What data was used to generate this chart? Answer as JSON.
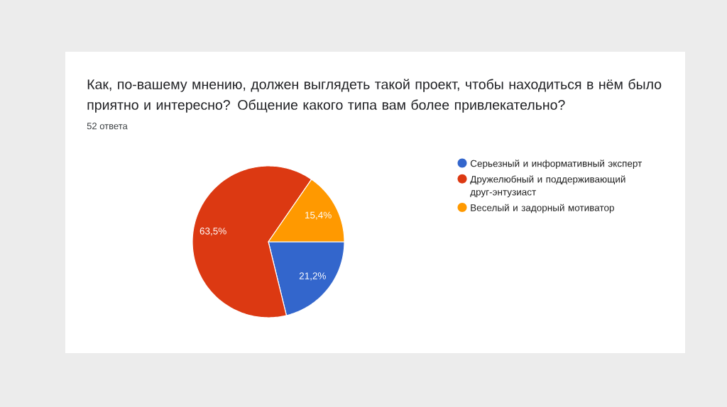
{
  "chart_data": {
    "type": "pie",
    "title": "Как, по-вашему мнению, должен выглядеть такой проект, чтобы находиться в нём было приятно и интересно? Общение какого типа вам более привлекательно?",
    "subtitle": "52 ответа",
    "categories": [
      "Серьезный и информативный эксперт",
      "Дружелюбный и поддерживающий друг-энтузиаст",
      "Веселый и задорный мотиватор"
    ],
    "values": [
      21.2,
      63.5,
      15.4
    ],
    "colors": [
      "#3366cc",
      "#dc3912",
      "#ff9900"
    ],
    "value_labels": [
      "21,2%",
      "63,5%",
      "15,4%"
    ],
    "legend": "right"
  }
}
